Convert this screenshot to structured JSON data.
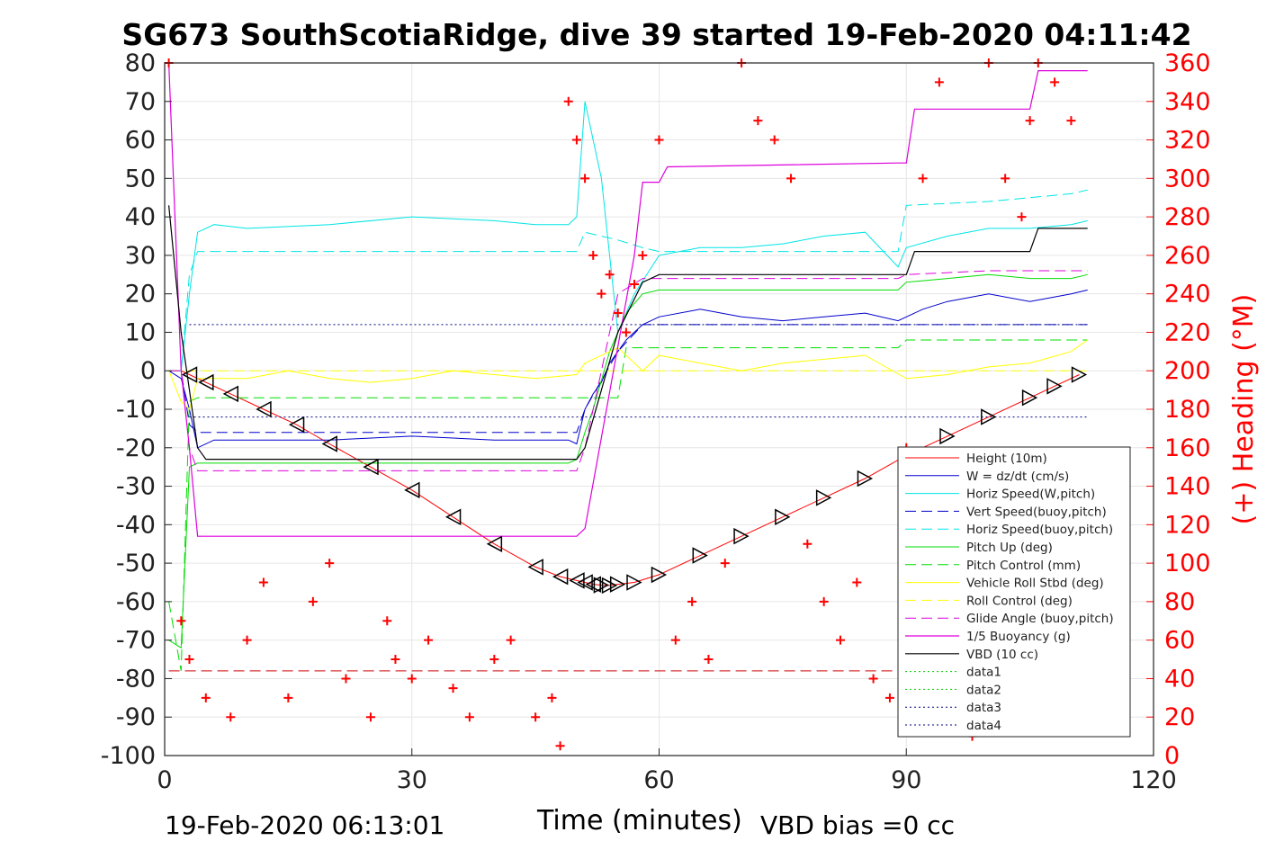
{
  "chart_data": {
    "type": "line",
    "title": "SG673 SouthScotiaRidge, dive 39 started 19-Feb-2020 04:11:42",
    "xlabel": "Time (minutes)",
    "ylabel_right": "(+) Heading (°M)",
    "footer_left": "19-Feb-2020 06:13:01",
    "footer_right": "VBD bias =0 cc",
    "xlim": [
      0,
      120
    ],
    "ylim": [
      -100,
      80
    ],
    "ylim_right": [
      0,
      360
    ],
    "xticks": [
      "0",
      "30",
      "60",
      "90",
      "120"
    ],
    "yticks": [
      "80",
      "70",
      "60",
      "50",
      "40",
      "30",
      "20",
      "10",
      "0",
      "-10",
      "-20",
      "-30",
      "-40",
      "-50",
      "-60",
      "-70",
      "-80",
      "-90",
      "-100"
    ],
    "yticks_right": [
      "360",
      "340",
      "320",
      "300",
      "280",
      "260",
      "240",
      "220",
      "200",
      "180",
      "160",
      "140",
      "120",
      "100",
      "80",
      "60",
      "40",
      "20",
      "0"
    ],
    "grid": true,
    "legend_position": "lower-right",
    "colors": {
      "height": "#ff0000",
      "w": "#0000cc",
      "horiz": "#00e5e5",
      "vert_buoy": "#0000cc",
      "pitch": "#00dd00",
      "roll": "#ffff00",
      "glide": "#dd00dd",
      "buoy": "#dd00dd",
      "vbd": "#000000",
      "heading": "#ff0000",
      "data1": "#00cc00",
      "data3": "#000080"
    },
    "series": [
      {
        "name": "Height (10m)",
        "x": [
          0.5,
          2,
          3,
          5,
          8,
          12,
          16,
          20,
          25,
          30,
          35,
          40,
          45,
          48,
          50,
          51,
          52,
          53,
          54,
          55,
          57,
          60,
          65,
          70,
          75,
          80,
          85,
          90,
          95,
          100,
          105,
          108,
          111
        ],
        "y": [
          0,
          0,
          -1,
          -3,
          -6,
          -10,
          -14,
          -19,
          -25,
          -31,
          -38,
          -45,
          -51,
          -53.5,
          -54.5,
          -55,
          -55.5,
          -55.7,
          -55.8,
          -55.5,
          -55,
          -53,
          -48,
          -43,
          -38,
          -33,
          -28,
          -22,
          -17,
          -12,
          -7,
          -4,
          -1
        ]
      },
      {
        "name": "W = dz/dt (cm/s)",
        "x": [
          0.5,
          2,
          3,
          4,
          6,
          10,
          20,
          30,
          40,
          45,
          49,
          50,
          51,
          52,
          53,
          54,
          55,
          56,
          57,
          58,
          60,
          65,
          70,
          75,
          80,
          85,
          89,
          90,
          92,
          95,
          100,
          105,
          110,
          112
        ],
        "y": [
          0,
          -2,
          -10,
          -20,
          -18,
          -18,
          -18,
          -17,
          -18,
          -18,
          -18,
          -19,
          -10,
          -6,
          -3,
          2,
          5,
          8,
          10,
          12,
          14,
          16,
          14,
          13,
          14,
          15,
          13,
          14,
          16,
          18,
          20,
          18,
          20,
          21
        ]
      },
      {
        "name": "Horiz Speed(W,pitch)",
        "x": [
          0.5,
          2,
          3,
          4,
          6,
          10,
          20,
          30,
          40,
          45,
          49,
          50,
          51,
          52,
          53,
          54,
          55,
          57,
          60,
          65,
          70,
          75,
          80,
          85,
          89,
          90,
          95,
          100,
          105,
          110,
          112
        ],
        "y": [
          0,
          0,
          20,
          36,
          38,
          37,
          38,
          40,
          39,
          38,
          38,
          40,
          70,
          60,
          50,
          30,
          10,
          20,
          30,
          32,
          32,
          33,
          35,
          36,
          27,
          32,
          35,
          37,
          37,
          38,
          39
        ]
      },
      {
        "name": "Vert Speed(buoy,pitch)",
        "x": [
          0.5,
          2,
          3,
          4,
          10,
          50,
          51,
          55,
          58,
          60,
          65,
          70,
          80,
          89,
          90,
          100,
          110,
          112
        ],
        "y": [
          0,
          0,
          -14,
          -16,
          -16,
          -16,
          -10,
          5,
          12,
          12,
          12,
          12,
          12,
          12,
          12,
          12,
          12,
          12
        ]
      },
      {
        "name": "Horiz Speed(buoy,pitch)",
        "x": [
          0.5,
          2,
          3,
          4,
          10,
          50,
          51,
          55,
          58,
          60,
          70,
          80,
          89,
          90,
          100,
          110,
          112
        ],
        "y": [
          0,
          0,
          25,
          31,
          31,
          31,
          36,
          34,
          32,
          31,
          31,
          31,
          31,
          43,
          44,
          46,
          47
        ]
      },
      {
        "name": "Pitch Up (deg)",
        "x": [
          0.5,
          2,
          3,
          4,
          10,
          20,
          30,
          40,
          49,
          50,
          51,
          52,
          54,
          55,
          56,
          58,
          60,
          70,
          80,
          89,
          90,
          95,
          100,
          105,
          110,
          112
        ],
        "y": [
          -70,
          -72,
          -25,
          -24,
          -24,
          -24,
          -24,
          -24,
          -24,
          -23,
          -16,
          -10,
          5,
          10,
          15,
          20,
          21,
          21,
          21,
          21,
          23,
          24,
          25,
          24,
          24,
          25
        ]
      },
      {
        "name": "Pitch Control (mm)",
        "x": [
          0.5,
          2,
          3,
          4,
          50,
          51,
          55,
          56,
          60,
          89,
          90,
          112
        ],
        "y": [
          -60,
          -78,
          -8,
          -7,
          -7,
          -7,
          -7,
          6,
          6,
          6,
          8,
          8
        ]
      },
      {
        "name": "Vehicle Roll Stbd (deg)",
        "x": [
          0.5,
          2,
          3,
          4,
          6,
          10,
          15,
          20,
          25,
          30,
          35,
          40,
          45,
          50,
          51,
          55,
          58,
          60,
          65,
          70,
          75,
          80,
          85,
          90,
          95,
          100,
          105,
          110,
          112
        ],
        "y": [
          0,
          -8,
          -10,
          -2,
          -2,
          -2,
          0,
          -2,
          -3,
          -2,
          0,
          -1,
          -2,
          -1,
          2,
          6,
          0,
          4,
          2,
          0,
          2,
          3,
          4,
          -2,
          -1,
          1,
          2,
          5,
          8
        ]
      },
      {
        "name": "Roll Control (deg)",
        "x": [
          0.5,
          3,
          10,
          20,
          30,
          40,
          50,
          55,
          60,
          70,
          80,
          90,
          100,
          110,
          112
        ],
        "y": [
          0,
          0,
          0,
          0,
          0,
          0,
          0,
          0,
          0,
          0,
          0,
          0,
          0,
          0,
          0
        ]
      },
      {
        "name": "Glide Angle (buoy,pitch)",
        "x": [
          0.5,
          2,
          3,
          4,
          10,
          20,
          30,
          40,
          50,
          51,
          55,
          58,
          60,
          70,
          80,
          89,
          90,
          100,
          110,
          112
        ],
        "y": [
          0,
          0,
          -20,
          -26,
          -26,
          -26,
          -26,
          -26,
          -26,
          -20,
          20,
          24,
          24,
          24,
          24,
          24,
          25,
          26,
          26,
          26
        ]
      },
      {
        "name": "1/5 Buoyancy (g)",
        "x": [
          0.5,
          2,
          3,
          4,
          10,
          20,
          30,
          40,
          50,
          51,
          57,
          58,
          60,
          61,
          89,
          90,
          91,
          100,
          105,
          106,
          112
        ],
        "y": [
          80,
          0,
          -20,
          -43,
          -43,
          -43,
          -43,
          -43,
          -43,
          -41,
          30,
          49,
          49,
          53,
          54,
          54,
          68,
          68,
          68,
          78,
          78
        ]
      },
      {
        "name": "VBD (10 cc)",
        "x": [
          0.5,
          2,
          3,
          4,
          5,
          10,
          20,
          30,
          40,
          50,
          51,
          55,
          58,
          60,
          61,
          89,
          90,
          91,
          100,
          105,
          106,
          112
        ],
        "y": [
          43,
          10,
          -5,
          -20,
          -23,
          -23,
          -23,
          -23,
          -23,
          -23,
          -20,
          10,
          23,
          25,
          25,
          25,
          25,
          31,
          31,
          31,
          37,
          37
        ]
      },
      {
        "name": "data1",
        "x": [
          0,
          120
        ],
        "y": [
          0,
          0
        ]
      },
      {
        "name": "data2",
        "x": [
          0,
          120
        ],
        "y": [
          0,
          0
        ]
      },
      {
        "name": "data3",
        "x": [
          3,
          112
        ],
        "y": [
          12,
          12
        ]
      },
      {
        "name": "data4",
        "x": [
          3,
          112
        ],
        "y": [
          -12,
          -12
        ]
      }
    ],
    "heading_right_axis": {
      "x": [
        0.5,
        2,
        3,
        5,
        8,
        10,
        12,
        15,
        18,
        20,
        22,
        25,
        27,
        28,
        30,
        32,
        35,
        37,
        40,
        42,
        45,
        47,
        48,
        49,
        50,
        51,
        52,
        53,
        54,
        55,
        56,
        57,
        58,
        60,
        62,
        64,
        66,
        68,
        70,
        72,
        74,
        76,
        78,
        80,
        82,
        84,
        86,
        88,
        90,
        92,
        94,
        96,
        98,
        100,
        102,
        104,
        105,
        106,
        108,
        110
      ],
      "y": [
        360,
        70,
        50,
        30,
        20,
        60,
        90,
        30,
        80,
        100,
        40,
        20,
        70,
        50,
        40,
        60,
        35,
        20,
        50,
        60,
        20,
        30,
        5,
        340,
        320,
        300,
        260,
        240,
        250,
        230,
        220,
        245,
        260,
        320,
        60,
        80,
        50,
        100,
        360,
        330,
        320,
        300,
        110,
        80,
        60,
        90,
        40,
        30,
        160,
        300,
        350,
        20,
        10,
        360,
        300,
        280,
        330,
        360,
        350,
        330
      ]
    },
    "black_triangle_markers_on_height": true,
    "red_dashed_line": {
      "y": -78
    }
  }
}
